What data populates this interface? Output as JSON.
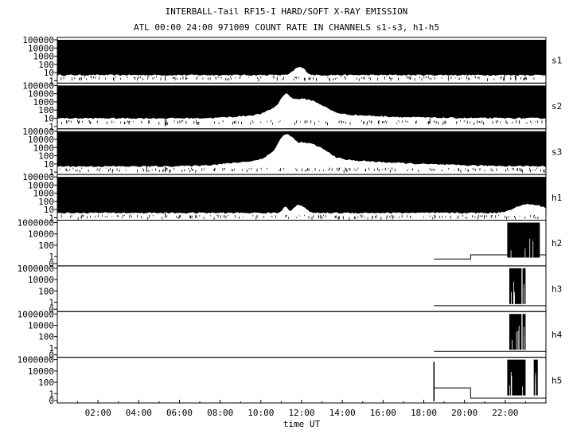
{
  "title_line1": "INTERBALL-Tail RF15-I HARD/SOFT X-RAY EMISSION",
  "title_line2": "ATL 00:00 24:00 971009  COUNT RATE IN CHANNELS s1-s3, h1-h5",
  "colors": {
    "ink": "#000000",
    "background": "#ffffff"
  },
  "chart_data": {
    "type": "line",
    "xlabel": "time UT",
    "x_ticks": [
      "02:00",
      "04:00",
      "06:00",
      "08:00",
      "10:00",
      "12:00",
      "14:00",
      "16:00",
      "18:00",
      "20:00",
      "22:00"
    ],
    "xlim_hours": [
      0,
      24
    ],
    "y_scale": "log",
    "panels": [
      {
        "name": "s1",
        "tick_labels": [
          "100000",
          "10000",
          "1000",
          "100",
          "10",
          "1"
        ],
        "ylim": [
          1,
          100000
        ],
        "band_top": 100000,
        "band_bottom": 5,
        "floor": 3,
        "peaks": [
          [
            11.9,
            8,
            0.2
          ]
        ],
        "spikes": [
          [
            5.3,
            1
          ],
          [
            21.95,
            1
          ],
          [
            22.5,
            1
          ]
        ]
      },
      {
        "name": "s2",
        "tick_labels": [
          "100000",
          "10000",
          "1000",
          "100",
          "10",
          "1"
        ],
        "ylim": [
          1,
          100000
        ],
        "band_top": 100000,
        "band_bottom": 10,
        "floor": 5,
        "peaks": [
          [
            11.9,
            40,
            0.6
          ],
          [
            11.2,
            8,
            0.15
          ],
          [
            12.5,
            5,
            1.8
          ]
        ],
        "spikes": [
          [
            5.3,
            1
          ],
          [
            18.3,
            2
          ]
        ]
      },
      {
        "name": "s3",
        "tick_labels": [
          "100000",
          "10000",
          "1000",
          "100",
          "10",
          "1"
        ],
        "ylim": [
          1,
          100000
        ],
        "band_top": 100000,
        "band_bottom": 5,
        "floor": 3,
        "peaks": [
          [
            11.9,
            80,
            0.6
          ],
          [
            11.2,
            20,
            0.2
          ],
          [
            12.8,
            10,
            2.2
          ]
        ],
        "spikes": [
          [
            5.3,
            1
          ],
          [
            4.4,
            1
          ]
        ]
      },
      {
        "name": "h1",
        "tick_labels": [
          "100000",
          "10000",
          "1000",
          "100",
          "10",
          "1"
        ],
        "ylim": [
          1,
          100000
        ],
        "band_top": 100000,
        "band_bottom": 4,
        "floor": 2,
        "peaks": [
          [
            11.9,
            8,
            0.2
          ],
          [
            11.2,
            5,
            0.1
          ],
          [
            23.2,
            10,
            0.5
          ]
        ],
        "spikes": [
          [
            5.3,
            1
          ]
        ]
      },
      {
        "name": "h2",
        "tick_labels": [
          "1000000",
          "10000",
          "100",
          "1",
          "0"
        ],
        "ylim": [
          0,
          1000000
        ],
        "steps": [
          [
            18.5,
            0.2
          ],
          [
            20.3,
            2
          ],
          [
            22.1,
            2
          ]
        ],
        "bursts": [
          [
            22.1,
            23.7
          ]
        ],
        "burst_range": [
          0.5,
          1000000
        ]
      },
      {
        "name": "h3",
        "tick_labels": [
          "1000000",
          "10000",
          "100",
          "1",
          "0"
        ],
        "ylim": [
          0,
          1000000
        ],
        "steps": [
          [
            18.5,
            0.1
          ],
          [
            24,
            0.1
          ]
        ],
        "bursts": [
          [
            22.2,
            22.8
          ],
          [
            22.85,
            23.0
          ]
        ],
        "burst_range": [
          0.3,
          1000000
        ]
      },
      {
        "name": "h4",
        "tick_labels": [
          "1000000",
          "10000",
          "100",
          "1",
          "0"
        ],
        "ylim": [
          0,
          1000000
        ],
        "steps": [
          [
            18.5,
            0.1
          ],
          [
            24,
            0.1
          ]
        ],
        "bursts": [
          [
            22.2,
            22.8
          ],
          [
            22.85,
            23.0
          ]
        ],
        "burst_range": [
          0.3,
          1000000
        ]
      },
      {
        "name": "h5",
        "tick_labels": [
          "1000000",
          "10000",
          "100",
          "1",
          "0"
        ],
        "ylim": [
          0,
          1000000
        ],
        "steps": [
          [
            18.5,
            10
          ],
          [
            20.3,
            0.05
          ],
          [
            22.1,
            0.05
          ]
        ],
        "bursts": [
          [
            22.1,
            23.0
          ],
          [
            23.4,
            23.6
          ]
        ],
        "burst_range": [
          0.3,
          1000000
        ],
        "vlines": [
          18.5
        ]
      }
    ]
  }
}
